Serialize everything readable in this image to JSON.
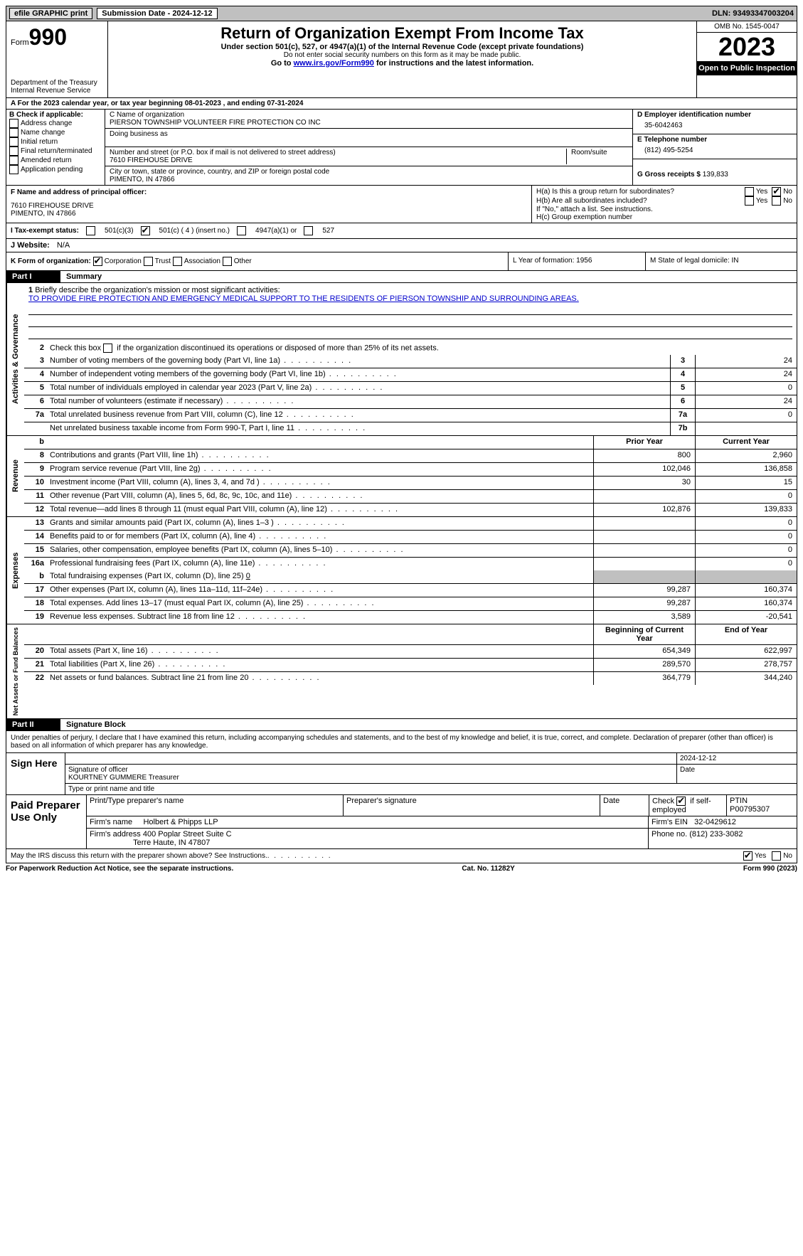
{
  "top": {
    "efile": "efile GRAPHIC print",
    "submission": "Submission Date - 2024-12-12",
    "dln": "DLN: 93493347003204"
  },
  "header": {
    "form_prefix": "Form",
    "form_number": "990",
    "dept": "Department of the Treasury Internal Revenue Service",
    "title": "Return of Organization Exempt From Income Tax",
    "sub": "Under section 501(c), 527, or 4947(a)(1) of the Internal Revenue Code (except private foundations)",
    "note1": "Do not enter social security numbers on this form as it may be made public.",
    "note2_pre": "Go to ",
    "note2_link": "www.irs.gov/Form990",
    "note2_post": " for instructions and the latest information.",
    "omb": "OMB No. 1545-0047",
    "year": "2023",
    "open": "Open to Public Inspection"
  },
  "tax_year": "For the 2023 calendar year, or tax year beginning 08-01-2023   , and ending 07-31-2024",
  "section_b": {
    "label": "B Check if applicable:",
    "items": [
      "Address change",
      "Name change",
      "Initial return",
      "Final return/terminated",
      "Amended return",
      "Application pending"
    ]
  },
  "section_c": {
    "name_lbl": "C Name of organization",
    "name": "PIERSON TOWNSHIP VOLUNTEER FIRE PROTECTION CO INC",
    "dba_lbl": "Doing business as",
    "addr_lbl": "Number and street (or P.O. box if mail is not delivered to street address)",
    "room_lbl": "Room/suite",
    "addr": "7610 FIREHOUSE DRIVE",
    "city_lbl": "City or town, state or province, country, and ZIP or foreign postal code",
    "city": "PIMENTO, IN  47866"
  },
  "section_d": {
    "lbl": "D Employer identification number",
    "val": "35-6042463"
  },
  "section_e": {
    "lbl": "E Telephone number",
    "val": "(812) 495-5254"
  },
  "section_g": {
    "lbl": "G Gross receipts $",
    "val": "139,833"
  },
  "section_f": {
    "lbl": "F  Name and address of principal officer:",
    "addr1": "7610 FIREHOUSE DRIVE",
    "addr2": "PIMENTO, IN  47866"
  },
  "section_h": {
    "ha": "H(a)  Is this a group return for subordinates?",
    "hb": "H(b)  Are all subordinates included?",
    "hb_note": "If \"No,\" attach a list. See instructions.",
    "hc": "H(c)  Group exemption number",
    "yes": "Yes",
    "no": "No"
  },
  "section_i": {
    "lbl": "I   Tax-exempt status:",
    "o1": "501(c)(3)",
    "o2": "501(c) ( 4 ) (insert no.)",
    "o3": "4947(a)(1) or",
    "o4": "527"
  },
  "section_j": {
    "lbl": "J   Website:",
    "val": "N/A"
  },
  "section_k": {
    "lbl": "K Form of organization:",
    "o1": "Corporation",
    "o2": "Trust",
    "o3": "Association",
    "o4": "Other"
  },
  "section_l": {
    "lbl": "L Year of formation: 1956"
  },
  "section_m": {
    "lbl": "M State of legal domicile: IN"
  },
  "parts": {
    "p1": "Part I",
    "p1_title": "Summary",
    "p2": "Part II",
    "p2_title": "Signature Block"
  },
  "summary": {
    "q1": "Briefly describe the organization's mission or most significant activities:",
    "mission": "TO PROVIDE FIRE PROTECTION AND EMERGENCY MEDICAL SUPPORT TO THE RESIDENTS OF PIERSON TOWNSHIP AND SURROUNDING AREAS.",
    "q2": "Check this box       if the organization discontinued its operations or disposed of more than 25% of its net assets.",
    "lines_gov": [
      {
        "n": "3",
        "d": "Number of voting members of the governing body (Part VI, line 1a)",
        "b": "3",
        "v": "24"
      },
      {
        "n": "4",
        "d": "Number of independent voting members of the governing body (Part VI, line 1b)",
        "b": "4",
        "v": "24"
      },
      {
        "n": "5",
        "d": "Total number of individuals employed in calendar year 2023 (Part V, line 2a)",
        "b": "5",
        "v": "0"
      },
      {
        "n": "6",
        "d": "Total number of volunteers (estimate if necessary)",
        "b": "6",
        "v": "24"
      },
      {
        "n": "7a",
        "d": "Total unrelated business revenue from Part VIII, column (C), line 12",
        "b": "7a",
        "v": "0"
      },
      {
        "n": "",
        "d": "Net unrelated business taxable income from Form 990-T, Part I, line 11",
        "b": "7b",
        "v": ""
      }
    ],
    "col_headers": {
      "b": "b",
      "prior": "Prior Year",
      "current": "Current Year"
    },
    "revenue": [
      {
        "n": "8",
        "d": "Contributions and grants (Part VIII, line 1h)",
        "p": "800",
        "c": "2,960"
      },
      {
        "n": "9",
        "d": "Program service revenue (Part VIII, line 2g)",
        "p": "102,046",
        "c": "136,858"
      },
      {
        "n": "10",
        "d": "Investment income (Part VIII, column (A), lines 3, 4, and 7d )",
        "p": "30",
        "c": "15"
      },
      {
        "n": "11",
        "d": "Other revenue (Part VIII, column (A), lines 5, 6d, 8c, 9c, 10c, and 11e)",
        "p": "",
        "c": "0"
      },
      {
        "n": "12",
        "d": "Total revenue—add lines 8 through 11 (must equal Part VIII, column (A), line 12)",
        "p": "102,876",
        "c": "139,833"
      }
    ],
    "expenses": [
      {
        "n": "13",
        "d": "Grants and similar amounts paid (Part IX, column (A), lines 1–3 )",
        "p": "",
        "c": "0"
      },
      {
        "n": "14",
        "d": "Benefits paid to or for members (Part IX, column (A), line 4)",
        "p": "",
        "c": "0"
      },
      {
        "n": "15",
        "d": "Salaries, other compensation, employee benefits (Part IX, column (A), lines 5–10)",
        "p": "",
        "c": "0"
      },
      {
        "n": "16a",
        "d": "Professional fundraising fees (Part IX, column (A), line 11e)",
        "p": "",
        "c": "0"
      }
    ],
    "exp_b": {
      "n": "b",
      "d": "Total fundraising expenses (Part IX, column (D), line 25)",
      "v": "0"
    },
    "expenses2": [
      {
        "n": "17",
        "d": "Other expenses (Part IX, column (A), lines 11a–11d, 11f–24e)",
        "p": "99,287",
        "c": "160,374"
      },
      {
        "n": "18",
        "d": "Total expenses. Add lines 13–17 (must equal Part IX, column (A), line 25)",
        "p": "99,287",
        "c": "160,374"
      },
      {
        "n": "19",
        "d": "Revenue less expenses. Subtract line 18 from line 12",
        "p": "3,589",
        "c": "-20,541"
      }
    ],
    "net_headers": {
      "p": "Beginning of Current Year",
      "c": "End of Year"
    },
    "net": [
      {
        "n": "20",
        "d": "Total assets (Part X, line 16)",
        "p": "654,349",
        "c": "622,997"
      },
      {
        "n": "21",
        "d": "Total liabilities (Part X, line 26)",
        "p": "289,570",
        "c": "278,757"
      },
      {
        "n": "22",
        "d": "Net assets or fund balances. Subtract line 21 from line 20",
        "p": "364,779",
        "c": "344,240"
      }
    ],
    "tabs": {
      "gov": "Activities & Governance",
      "rev": "Revenue",
      "exp": "Expenses",
      "net": "Net Assets or Fund Balances"
    }
  },
  "sig": {
    "penalty": "Under penalties of perjury, I declare that I have examined this return, including accompanying schedules and statements, and to the best of my knowledge and belief, it is true, correct, and complete. Declaration of preparer (other than officer) is based on all information of which preparer has any knowledge.",
    "sign_here": "Sign Here",
    "date_top": "2024-12-12",
    "sig_officer": "Signature of officer",
    "officer": "KOURTNEY GUMMERE  Treasurer",
    "type_name": "Type or print name and title",
    "date_lbl": "Date",
    "paid_prep": "Paid Preparer Use Only",
    "prep_name_lbl": "Print/Type preparer's name",
    "prep_sig_lbl": "Preparer's signature",
    "check_self": "Check         if self-employed",
    "ptin_lbl": "PTIN",
    "ptin": "P00795307",
    "firm_name_lbl": "Firm's name",
    "firm_name": "Holbert & Phipps LLP",
    "firm_ein_lbl": "Firm's EIN",
    "firm_ein": "32-0429612",
    "firm_addr_lbl": "Firm's address",
    "firm_addr1": "400 Poplar Street Suite C",
    "firm_addr2": "Terre Haute, IN  47807",
    "phone_lbl": "Phone no.",
    "phone": "(812) 233-3082",
    "discuss": "May the IRS discuss this return with the preparer shown above? See Instructions.",
    "yes": "Yes",
    "no": "No"
  },
  "footer": {
    "left": "For Paperwork Reduction Act Notice, see the separate instructions.",
    "mid": "Cat. No. 11282Y",
    "right": "Form 990 (2023)"
  }
}
